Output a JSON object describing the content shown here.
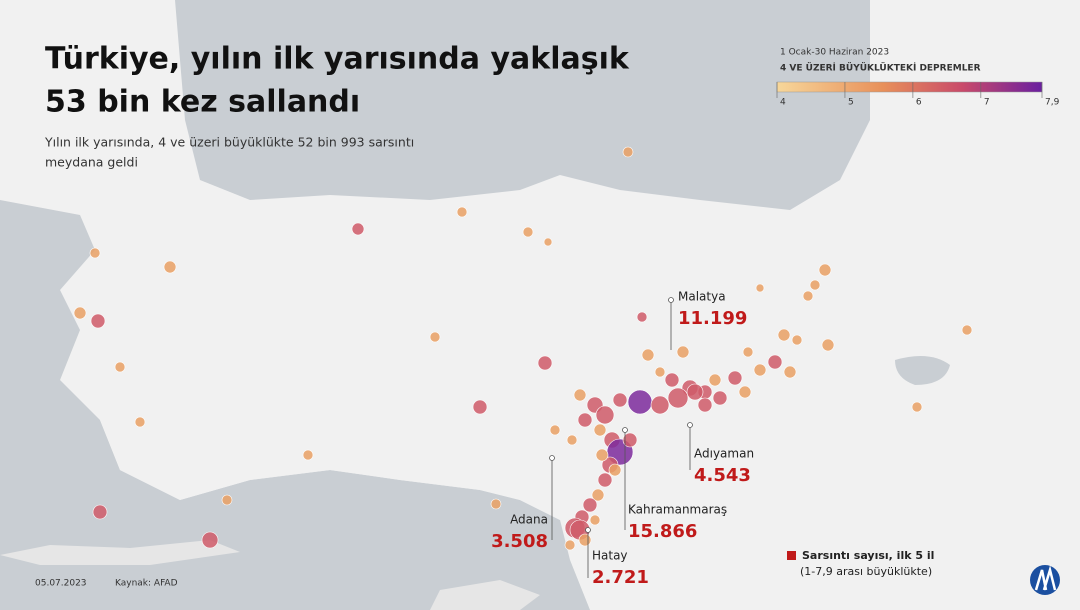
{
  "header": {
    "title": [
      "Türkiye, yılın ilk yarısında yaklaşık",
      "53 bin kez sallandı"
    ],
    "subtitle": [
      "Yılın ilk yarısında, 4 ve üzeri büyüklükte 52 bin 993 sarsıntı",
      "meydana geldi"
    ]
  },
  "legend": {
    "period": "1 Ocak-30 Haziran 2023",
    "title": "4 VE ÜZERİ BÜYÜKLÜKTEKİ DEPREMLER",
    "scale": [
      4,
      5,
      6,
      7,
      {
        "value": 7.9,
        "label": "7,9"
      }
    ],
    "scale_range": [
      4,
      7.9
    ],
    "count_title": "Sarsıntı sayısı,  ilk 5 il",
    "count_note": "(1-7,9 arası büyüklükte)"
  },
  "cities": [
    {
      "name": "Malatya",
      "count": "11.199"
    },
    {
      "name": "Adıyaman",
      "count": "4.543"
    },
    {
      "name": "Kahramanmaraş",
      "count": "15.866"
    },
    {
      "name": "Adana",
      "count": "3.508"
    },
    {
      "name": "Hatay",
      "count": "2.721"
    }
  ],
  "footer": {
    "date": "05.07.2023",
    "source": "Kaynak: AFAD"
  }
}
